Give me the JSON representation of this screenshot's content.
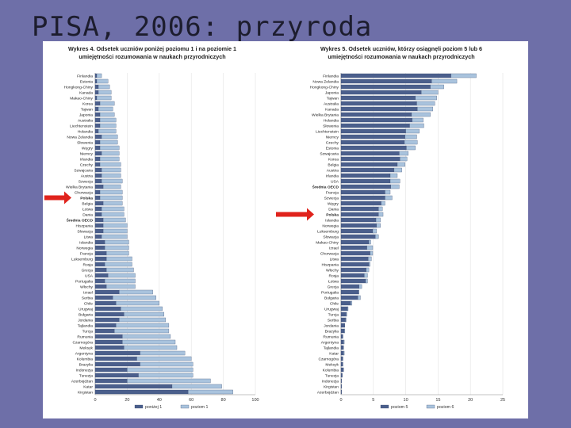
{
  "slide": {
    "title": "PISA, 2006: przyroda"
  },
  "colors": {
    "dark": "#4b5f8c",
    "light": "#a9c3dd",
    "arrow": "#e0231c",
    "edge": "#3c4c70"
  },
  "chart_data": [
    {
      "type": "bar",
      "orientation": "horizontal",
      "stacked": true,
      "title_lines": [
        "Wykres 4. Odsetek uczniów poniżej poziomu 1 i na poziomie 1",
        "umiejętności rozumowania w naukach przyrodniczych"
      ],
      "xlim": [
        0,
        100
      ],
      "xticks": [
        0,
        20,
        40,
        60,
        80,
        100
      ],
      "highlight": "Polska",
      "categories": [
        "Finlandia",
        "Estonia",
        "Hongkong-Chiny",
        "Kanada",
        "Makao-Chiny",
        "Korea",
        "Tajwan",
        "Japonia",
        "Australia",
        "Liechtenstein",
        "Holandia",
        "Nowa Zelandia",
        "Słowenia",
        "Węgry",
        "Niemcy",
        "Irlandia",
        "Czechy",
        "Szwajcaria",
        "Austria",
        "Szwecja",
        "Wielka Brytania",
        "Chorwacja",
        "Polska",
        "Belgia",
        "Łotwa",
        "Dania",
        "Średnia OECD",
        "Hiszpania",
        "Słowacja",
        "Litwa",
        "Islandia",
        "Norwegia",
        "Francja",
        "Luksemburg",
        "Rosja",
        "Grecja",
        "USA",
        "Portugalia",
        "Włochy",
        "Izrael",
        "Serbia",
        "Chile",
        "Urugwaj",
        "Bułgaria",
        "Jordania",
        "Tajlandia",
        "Turcja",
        "Rumunia",
        "Czarnogóra",
        "Meksyk",
        "Argentyna",
        "Kolumbia",
        "Brazylia",
        "Indonezja",
        "Tunezja",
        "Azerbejdżan",
        "Katar",
        "Kirgistan"
      ],
      "series": [
        {
          "name": "poniżej 1",
          "values": [
            1,
            1,
            2,
            2,
            1,
            3,
            2,
            3,
            3,
            3,
            2,
            4,
            3,
            3,
            4,
            3,
            3,
            4,
            4,
            4,
            5,
            3,
            3,
            5,
            4,
            4,
            5,
            5,
            5,
            4,
            6,
            6,
            7,
            7,
            6,
            7,
            8,
            6,
            7,
            15,
            11,
            13,
            16,
            18,
            15,
            13,
            12,
            17,
            17,
            18,
            28,
            26,
            28,
            20,
            27,
            20,
            48,
            58
          ]
        },
        {
          "name": "poziom 1",
          "values": [
            3,
            7,
            7,
            8,
            9,
            9,
            9,
            9,
            10,
            10,
            11,
            10,
            11,
            12,
            11,
            12,
            13,
            12,
            12,
            13,
            11,
            14,
            14,
            12,
            14,
            14,
            14,
            15,
            15,
            16,
            15,
            15,
            14,
            16,
            17,
            17,
            17,
            19,
            18,
            21,
            27,
            27,
            26,
            25,
            29,
            33,
            34,
            30,
            33,
            33,
            28,
            34,
            33,
            41,
            34,
            52,
            31,
            28
          ]
        }
      ]
    },
    {
      "type": "bar",
      "orientation": "horizontal",
      "stacked": true,
      "title_lines": [
        "Wykres 5. Odsetek uczniów, którzy osiągnęli poziom 5 lub 6",
        "umiejętności rozumowania w naukach przyrodniczych"
      ],
      "xlim": [
        0,
        25
      ],
      "xticks": [
        0,
        5,
        10,
        15,
        20,
        25
      ],
      "highlight": "Polska",
      "categories": [
        "Finlandia",
        "Nowa Zelandia",
        "Hongkong-Chiny",
        "Japonia",
        "Tajwan",
        "Australia",
        "Kanada",
        "Wielka Brytania",
        "Holandia",
        "Słowenia",
        "Liechtenstein",
        "Niemcy",
        "Czechy",
        "Estonia",
        "Szwajcaria",
        "Korea",
        "Belgia",
        "Austria",
        "Irlandia",
        "USA",
        "Średnia OECD",
        "Francja",
        "Szwecja",
        "Węgry",
        "Dania",
        "Polska",
        "Islandia",
        "Norwegia",
        "Luksemburg",
        "Słowacja",
        "Makao-Chiny",
        "Izrael",
        "Chorwacja",
        "Litwa",
        "Hiszpania",
        "Włochy",
        "Rosja",
        "Łotwa",
        "Grecja",
        "Portugalia",
        "Bułgaria",
        "Chile",
        "Urugwaj",
        "Turcja",
        "Serbia",
        "Jordania",
        "Brazylia",
        "Rumunia",
        "Argentyna",
        "Tajlandia",
        "Katar",
        "Czarnogóra",
        "Meksyk",
        "Kolumbia",
        "Tunezja",
        "Indonezja",
        "Kirgistan",
        "Azerbejdżan"
      ],
      "series": [
        {
          "name": "poziom 5",
          "values": [
            17.0,
            14.0,
            13.8,
            12.4,
            11.5,
            11.7,
            11.8,
            10.9,
            11.0,
            10.6,
            10.0,
            9.9,
            9.8,
            10.1,
            9.0,
            9.1,
            8.7,
            8.2,
            7.6,
            7.6,
            7.7,
            6.8,
            6.8,
            6.2,
            5.8,
            5.8,
            5.4,
            5.5,
            4.9,
            5.3,
            4.3,
            4.0,
            4.5,
            4.2,
            4.3,
            3.9,
            3.6,
            3.8,
            2.8,
            2.7,
            2.6,
            1.5,
            1.0,
            0.8,
            0.7,
            0.6,
            0.5,
            0.3,
            0.4,
            0.4,
            0.4,
            0.3,
            0.3,
            0.4,
            0.2,
            0.1,
            0.1,
            0.1
          ]
        },
        {
          "name": "poziom 6",
          "values": [
            3.9,
            3.9,
            2.1,
            2.6,
            3.3,
            2.8,
            2.4,
            2.9,
            1.7,
            2.2,
            2.1,
            1.8,
            2.0,
            1.4,
            1.4,
            1.1,
            1.2,
            1.2,
            1.1,
            1.5,
            1.3,
            0.8,
            1.1,
            0.6,
            0.6,
            0.7,
            0.7,
            0.6,
            0.6,
            0.5,
            0.3,
            0.9,
            0.4,
            0.5,
            0.2,
            0.4,
            0.5,
            0.3,
            0.4,
            0.1,
            0.4,
            0.2,
            0.1,
            0.1,
            0.1,
            0.0,
            0.1,
            0.0,
            0.1,
            0.0,
            0.1,
            0.0,
            0.0,
            0.0,
            0.0,
            0.0,
            0.0,
            0.0
          ]
        }
      ]
    }
  ]
}
